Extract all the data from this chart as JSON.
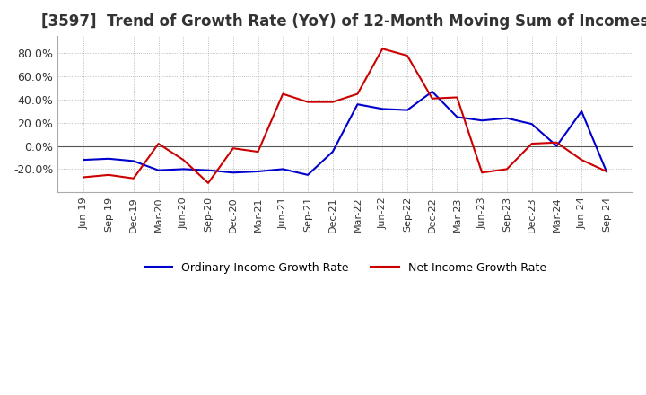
{
  "title": "[3597]  Trend of Growth Rate (YoY) of 12-Month Moving Sum of Incomes",
  "title_fontsize": 12,
  "background_color": "#ffffff",
  "grid_color": "#aaaaaa",
  "x_labels": [
    "Jun-19",
    "Sep-19",
    "Dec-19",
    "Mar-20",
    "Jun-20",
    "Sep-20",
    "Dec-20",
    "Mar-21",
    "Jun-21",
    "Sep-21",
    "Dec-21",
    "Mar-22",
    "Jun-22",
    "Sep-22",
    "Dec-22",
    "Mar-23",
    "Jun-23",
    "Sep-23",
    "Dec-23",
    "Mar-24",
    "Jun-24",
    "Sep-24"
  ],
  "ordinary_income": [
    -12,
    -11,
    -13,
    -21,
    -20,
    -21,
    -23,
    -22,
    -20,
    -25,
    -5,
    36,
    32,
    31,
    47,
    25,
    22,
    24,
    19,
    0,
    30,
    -22
  ],
  "net_income": [
    -27,
    -25,
    -28,
    2,
    -12,
    -32,
    -2,
    -5,
    45,
    38,
    38,
    45,
    84,
    78,
    41,
    42,
    -23,
    -20,
    2,
    3,
    -12,
    -22
  ],
  "line_color_ordinary": "#0000cc",
  "line_color_net": "#cc0000",
  "ylim": [
    -40,
    95
  ],
  "yticks": [
    -20,
    0,
    20,
    40,
    60,
    80
  ],
  "legend_ordinary": "Ordinary Income Growth Rate",
  "legend_net": "Net Income Growth Rate"
}
